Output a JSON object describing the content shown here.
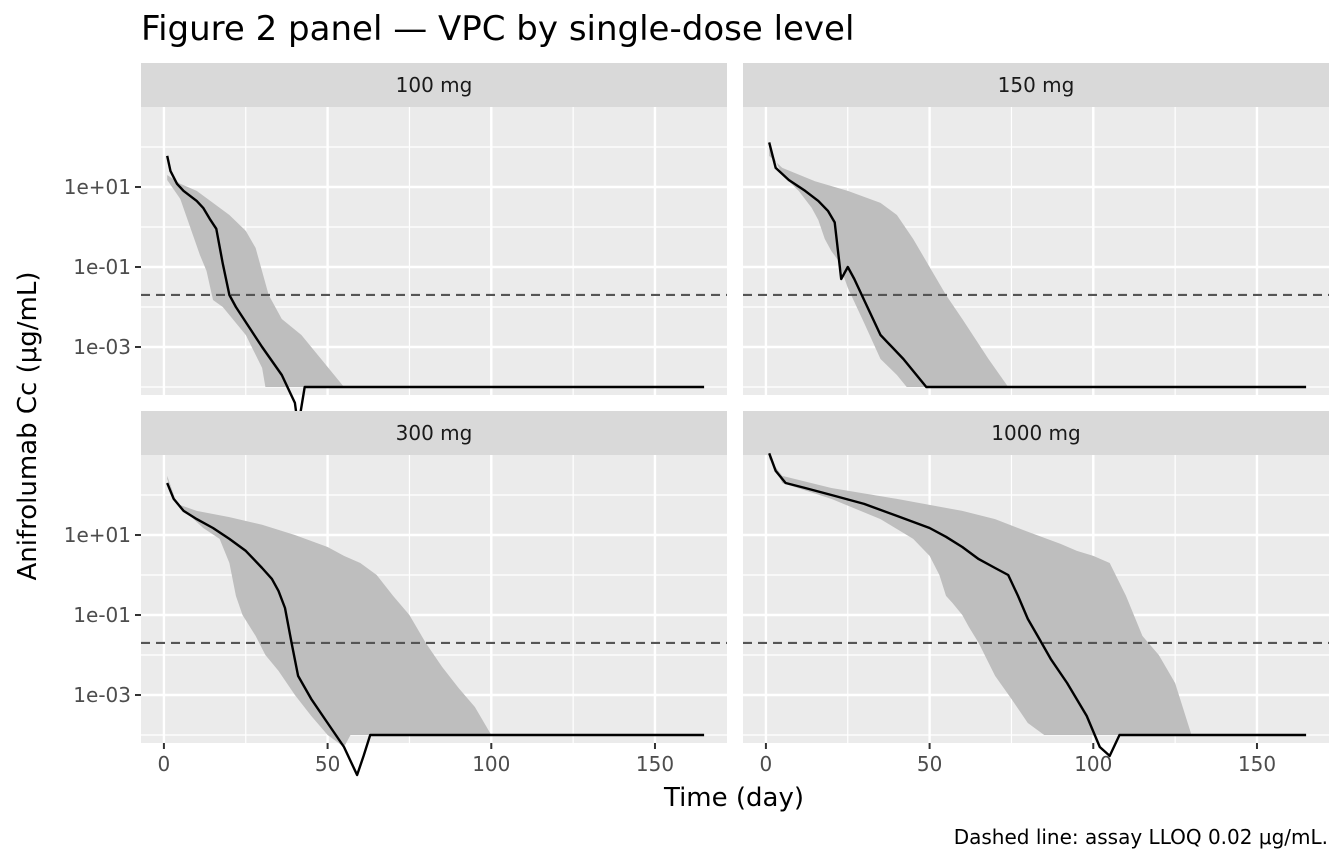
{
  "chart_data": {
    "type": "line",
    "title": "Figure 2 panel — VPC by single-dose level",
    "xlabel": "Time (day)",
    "ylabel": "Anifrolumab Cc (μg/mL)",
    "caption": "Dashed line: assay LLOQ 0.02 μg/mL.",
    "x_scale": "linear",
    "y_scale": "log10",
    "xlim": [
      -7,
      172
    ],
    "ylim_log10": [
      -4.2,
      3.0
    ],
    "x_ticks": [
      0,
      50,
      100,
      150
    ],
    "x_tick_labels": [
      "0",
      "50",
      "100",
      "150"
    ],
    "y_ticks_log10": [
      1,
      -1,
      -3
    ],
    "y_tick_labels": [
      "1e+01",
      "1e-01",
      "1e-03"
    ],
    "reference_line": {
      "y": 0.02,
      "style": "dashed"
    },
    "grid": true,
    "colors": {
      "panel_bg": "#ebebeb",
      "strip_bg": "#d9d9d9",
      "band": "#bebebe",
      "median": "#000000",
      "reference": "#555555",
      "grid": "#ffffff"
    },
    "panels": [
      {
        "label": "100 mg",
        "median": {
          "x": [
            1,
            2,
            4,
            6,
            10,
            12,
            14,
            16,
            18,
            20,
            22,
            30,
            36,
            40,
            41,
            43,
            165
          ],
          "y": [
            60,
            25,
            12,
            8,
            4.5,
            3.0,
            1.6,
            0.9,
            0.12,
            0.02,
            0.01,
            0.001,
            0.0002,
            4e-05,
            1e-05,
            0.0001,
            0.0001
          ]
        },
        "band_upper": {
          "x": [
            1,
            5,
            10,
            15,
            20,
            25,
            28,
            32,
            36,
            42,
            48,
            55,
            165
          ],
          "y": [
            20,
            12,
            8,
            4,
            2,
            0.8,
            0.3,
            0.02,
            0.005,
            0.002,
            0.0005,
            0.0001,
            0.0001
          ]
        },
        "band_lower": {
          "x": [
            1,
            5,
            8,
            11,
            13,
            15,
            18,
            25,
            30,
            31,
            33,
            165
          ],
          "y": [
            15,
            5,
            1,
            0.2,
            0.08,
            0.015,
            0.01,
            0.002,
            0.0003,
            0.0001,
            0.0001,
            0.0001
          ]
        }
      },
      {
        "label": "150 mg",
        "median": {
          "x": [
            1,
            3,
            7,
            12,
            16,
            19,
            21,
            23,
            25,
            27,
            30,
            35,
            42,
            49,
            165
          ],
          "y": [
            130,
            30,
            15,
            8,
            4.5,
            2.5,
            1.3,
            0.05,
            0.1,
            0.05,
            0.015,
            0.002,
            0.0005,
            0.0001,
            0.0001
          ]
        },
        "band_upper": {
          "x": [
            1,
            5,
            15,
            25,
            35,
            40,
            45,
            50,
            55,
            60,
            68,
            74,
            165
          ],
          "y": [
            60,
            30,
            14,
            8,
            4,
            2,
            0.5,
            0.1,
            0.02,
            0.005,
            0.0005,
            0.0001,
            0.0001
          ]
        },
        "band_lower": {
          "x": [
            1,
            5,
            10,
            14,
            16,
            18,
            20,
            22,
            25,
            30,
            35,
            40,
            43,
            165
          ],
          "y": [
            100,
            20,
            8,
            3,
            1.5,
            0.5,
            0.25,
            0.15,
            0.03,
            0.004,
            0.0005,
            0.0002,
            0.0001,
            0.0001
          ]
        }
      },
      {
        "label": "300 mg",
        "median": {
          "x": [
            1,
            3,
            6,
            10,
            15,
            20,
            25,
            30,
            33,
            35,
            37,
            39,
            41,
            45,
            50,
            55,
            59,
            61,
            63,
            65,
            67,
            165
          ],
          "y": [
            200,
            80,
            40,
            25,
            15,
            8,
            4,
            1.5,
            0.8,
            0.4,
            0.15,
            0.02,
            0.003,
            0.0008,
            0.0002,
            5e-05,
            1e-05,
            3e-05,
            0.0001,
            0.0001,
            0.0001,
            0.0001
          ]
        },
        "band_upper": {
          "x": [
            1,
            4,
            10,
            20,
            30,
            40,
            50,
            55,
            60,
            65,
            70,
            75,
            80,
            85,
            90,
            95,
            100,
            165
          ],
          "y": [
            300,
            60,
            40,
            28,
            18,
            10,
            5,
            3,
            2,
            1,
            0.3,
            0.1,
            0.02,
            0.005,
            0.0015,
            0.0005,
            0.0001,
            0.0001
          ]
        },
        "band_lower": {
          "x": [
            1,
            4,
            8,
            12,
            17,
            20,
            22,
            24,
            28,
            31,
            35,
            40,
            45,
            50,
            55,
            57,
            59,
            165
          ],
          "y": [
            250,
            60,
            30,
            15,
            8,
            2,
            0.3,
            0.1,
            0.03,
            0.01,
            0.004,
            0.001,
            0.0003,
            0.0001,
            5e-05,
            0.0001,
            0.0001,
            0.0001
          ]
        }
      },
      {
        "label": "1000 mg",
        "median": {
          "x": [
            1,
            3,
            6,
            12,
            20,
            30,
            40,
            50,
            55,
            60,
            65,
            70,
            74,
            77,
            80,
            83,
            87,
            92,
            98,
            102,
            105,
            108,
            165
          ],
          "y": [
            1100,
            400,
            200,
            150,
            100,
            60,
            30,
            15,
            9,
            5,
            2.5,
            1.5,
            1.0,
            0.3,
            0.08,
            0.03,
            0.008,
            0.002,
            0.0003,
            5e-05,
            3e-05,
            0.0001,
            0.0001
          ]
        },
        "band_upper": {
          "x": [
            1,
            5,
            20,
            40,
            60,
            70,
            80,
            90,
            95,
            100,
            105,
            110,
            115,
            120,
            125,
            130,
            165
          ],
          "y": [
            800,
            300,
            150,
            80,
            40,
            25,
            12,
            6,
            4,
            3,
            2,
            0.3,
            0.03,
            0.01,
            0.002,
            0.0001,
            0.0001
          ]
        },
        "band_lower": {
          "x": [
            1,
            5,
            20,
            35,
            45,
            50,
            53,
            55,
            57,
            60,
            62,
            65,
            70,
            75,
            80,
            85,
            90,
            165
          ],
          "y": [
            1000,
            200,
            80,
            25,
            8,
            3,
            1,
            0.3,
            0.2,
            0.1,
            0.05,
            0.02,
            0.003,
            0.0008,
            0.0002,
            0.0001,
            0.0001,
            0.0001
          ]
        }
      }
    ]
  }
}
